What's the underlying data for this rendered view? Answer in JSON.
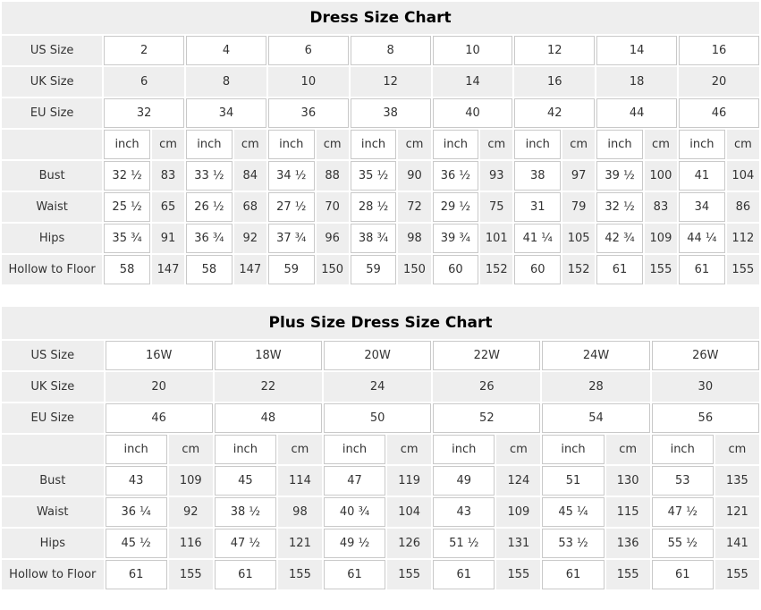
{
  "colors": {
    "shade_background": "#eeeeee",
    "cell_border": "#c9c9c9",
    "cell_text": "#333333",
    "title_text": "#000000",
    "page_background": "#ffffff"
  },
  "tables": [
    {
      "title": "Dress Size Chart",
      "unit_row_label": "",
      "unit_labels": [
        "inch",
        "cm"
      ],
      "size_rows": [
        {
          "label": "US Size",
          "values": [
            "2",
            "4",
            "6",
            "8",
            "10",
            "12",
            "14",
            "16"
          ]
        },
        {
          "label": "UK Size",
          "values": [
            "6",
            "8",
            "10",
            "12",
            "14",
            "16",
            "18",
            "20"
          ]
        },
        {
          "label": "EU Size",
          "values": [
            "32",
            "34",
            "36",
            "38",
            "40",
            "42",
            "44",
            "46"
          ]
        }
      ],
      "measure_rows": [
        {
          "label": "Bust",
          "values": [
            "32 ½",
            "83",
            "33 ½",
            "84",
            "34 ½",
            "88",
            "35 ½",
            "90",
            "36 ½",
            "93",
            "38",
            "97",
            "39 ½",
            "100",
            "41",
            "104"
          ]
        },
        {
          "label": "Waist",
          "values": [
            "25 ½",
            "65",
            "26 ½",
            "68",
            "27 ½",
            "70",
            "28 ½",
            "72",
            "29 ½",
            "75",
            "31",
            "79",
            "32 ½",
            "83",
            "34",
            "86"
          ]
        },
        {
          "label": "Hips",
          "values": [
            "35 ¾",
            "91",
            "36 ¾",
            "92",
            "37 ¾",
            "96",
            "38 ¾",
            "98",
            "39 ¾",
            "101",
            "41 ¼",
            "105",
            "42 ¾",
            "109",
            "44 ¼",
            "112"
          ]
        },
        {
          "label": "Hollow to Floor",
          "values": [
            "58",
            "147",
            "58",
            "147",
            "59",
            "150",
            "59",
            "150",
            "60",
            "152",
            "60",
            "152",
            "61",
            "155",
            "61",
            "155"
          ]
        }
      ]
    },
    {
      "title": "Plus Size Dress Size Chart",
      "unit_row_label": "",
      "unit_labels": [
        "inch",
        "cm"
      ],
      "size_rows": [
        {
          "label": "US Size",
          "values": [
            "16W",
            "18W",
            "20W",
            "22W",
            "24W",
            "26W"
          ]
        },
        {
          "label": "UK Size",
          "values": [
            "20",
            "22",
            "24",
            "26",
            "28",
            "30"
          ]
        },
        {
          "label": "EU Size",
          "values": [
            "46",
            "48",
            "50",
            "52",
            "54",
            "56"
          ]
        }
      ],
      "measure_rows": [
        {
          "label": "Bust",
          "values": [
            "43",
            "109",
            "45",
            "114",
            "47",
            "119",
            "49",
            "124",
            "51",
            "130",
            "53",
            "135"
          ]
        },
        {
          "label": "Waist",
          "values": [
            "36 ¼",
            "92",
            "38 ½",
            "98",
            "40 ¾",
            "104",
            "43",
            "109",
            "45 ¼",
            "115",
            "47 ½",
            "121"
          ]
        },
        {
          "label": "Hips",
          "values": [
            "45 ½",
            "116",
            "47 ½",
            "121",
            "49 ½",
            "126",
            "51 ½",
            "131",
            "53 ½",
            "136",
            "55 ½",
            "141"
          ]
        },
        {
          "label": "Hollow to Floor",
          "values": [
            "61",
            "155",
            "61",
            "155",
            "61",
            "155",
            "61",
            "155",
            "61",
            "155",
            "61",
            "155"
          ]
        }
      ]
    }
  ]
}
